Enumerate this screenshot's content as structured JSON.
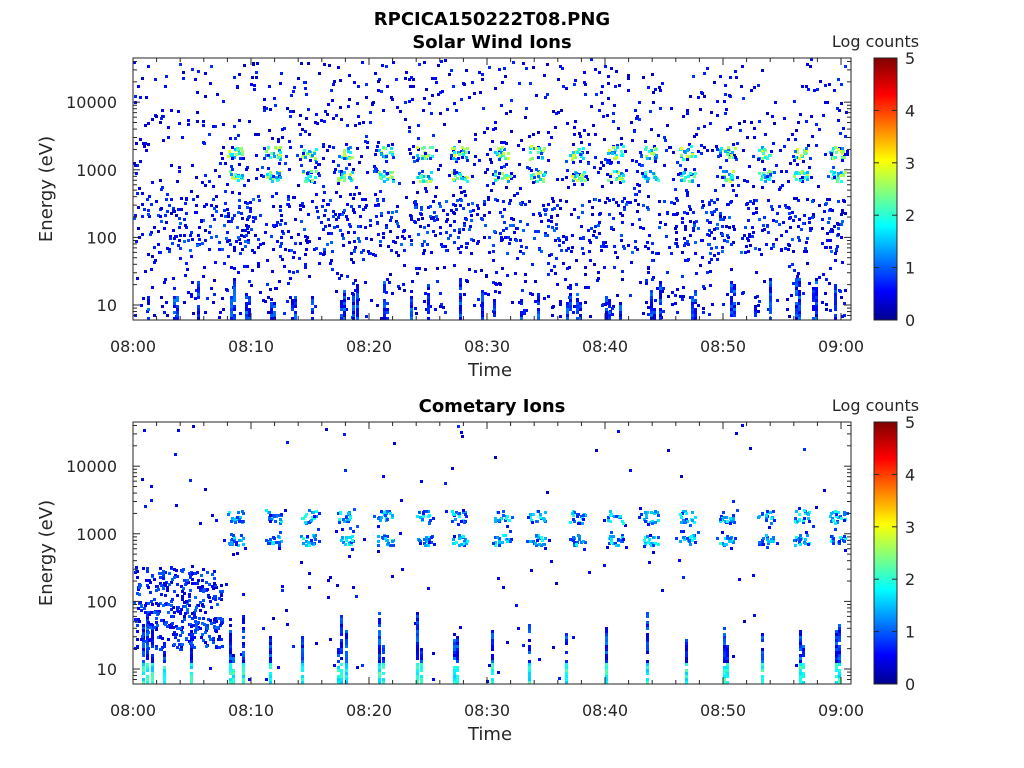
{
  "figure_title": "RPCICA150222T08.PNG",
  "colors": {
    "colormap": [
      "#00008f",
      "#0000ff",
      "#00ffff",
      "#ffff00",
      "#ff0000",
      "#800000"
    ],
    "axis": "#262626"
  },
  "chart_data": [
    {
      "type": "heatmap",
      "title": "Solar Wind Ions",
      "xlabel": "Time",
      "ylabel": "Energy (eV)",
      "x_ticks": [
        "08:00",
        "08:10",
        "08:20",
        "08:30",
        "08:40",
        "08:50",
        "09:00"
      ],
      "x_range": [
        "08:00",
        "09:00"
      ],
      "y_scale": "log",
      "y_ticks": [
        "10",
        "100",
        "1000",
        "10000"
      ],
      "y_range": [
        6,
        45000
      ],
      "colorbar": {
        "label": "Log counts",
        "range": [
          0,
          5
        ],
        "ticks": [
          "0",
          "1",
          "2",
          "3",
          "4",
          "5"
        ]
      },
      "noise_density": 0.07,
      "features": [
        {
          "name": "bursts_1000eV",
          "time_min": [
            8.6,
            11.8,
            14.8,
            17.9,
            21.3,
            24.6,
            27.6,
            31.2,
            34.2,
            37.6,
            40.8,
            43.8,
            46.9,
            50.3,
            53.5,
            56.6,
            59.6
          ],
          "energy_eV": [
            800,
            1900
          ],
          "peak_log_counts": 3.0
        },
        {
          "name": "low_energy_bursts",
          "time_min": [
            1.2,
            3.4,
            5.4,
            8.2,
            9.5,
            11.6,
            13.4,
            15.1,
            17.5,
            18.6,
            21.2,
            23.5,
            24.9,
            27.6,
            29.5,
            30.5,
            32.8,
            34.2,
            36.7,
            37.5,
            40.0,
            41.2,
            43.8,
            44.6,
            47.3,
            50.6,
            52.6,
            53.9,
            56.1,
            57.5,
            59.4
          ],
          "energy_eV": [
            6,
            28
          ],
          "peak_log_counts": 1.3
        },
        {
          "name": "background_100eV",
          "time_range": [
            0,
            60
          ],
          "energy_eV": [
            60,
            400
          ],
          "peak_log_counts": 1.0
        }
      ]
    },
    {
      "type": "heatmap",
      "title": "Cometary Ions",
      "xlabel": "Time",
      "ylabel": "Energy (eV)",
      "x_ticks": [
        "08:00",
        "08:10",
        "08:20",
        "08:30",
        "08:40",
        "08:50",
        "09:00"
      ],
      "x_range": [
        "08:00",
        "09:00"
      ],
      "y_scale": "log",
      "y_ticks": [
        "10",
        "100",
        "1000",
        "10000"
      ],
      "y_range": [
        6,
        45000
      ],
      "colorbar": {
        "label": "Log counts",
        "range": [
          0,
          5
        ],
        "ticks": [
          "0",
          "1",
          "2",
          "3",
          "4",
          "5"
        ]
      },
      "noise_density": 0.006,
      "features": [
        {
          "name": "bursts_1000eV",
          "time_min": [
            8.6,
            11.8,
            14.8,
            17.9,
            21.3,
            24.6,
            27.6,
            31.2,
            34.2,
            37.6,
            40.8,
            43.8,
            46.9,
            50.3,
            53.5,
            56.6,
            59.6
          ],
          "energy_eV": [
            600,
            2500
          ],
          "peak_log_counts": 2.0
        },
        {
          "name": "low_energy_bursts",
          "time_min": [
            0.8,
            1.5,
            2.5,
            4.8,
            8.1,
            9.2,
            11.5,
            14.2,
            17.3,
            18.0,
            20.8,
            24.0,
            27.1,
            30.3,
            33.5,
            36.6,
            40.0,
            43.5,
            46.8,
            50.0,
            53.2,
            56.4,
            59.5
          ],
          "energy_eV": [
            6,
            80
          ],
          "peak_log_counts": 2.2
        },
        {
          "name": "early_spread",
          "time_range": [
            0,
            7.5
          ],
          "energy_eV": [
            20,
            350
          ],
          "peak_log_counts": 1.0
        }
      ]
    }
  ]
}
